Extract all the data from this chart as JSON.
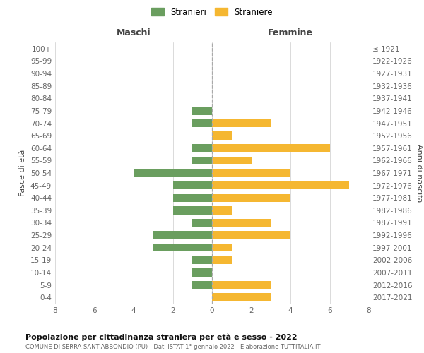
{
  "age_groups": [
    "100+",
    "95-99",
    "90-94",
    "85-89",
    "80-84",
    "75-79",
    "70-74",
    "65-69",
    "60-64",
    "55-59",
    "50-54",
    "45-49",
    "40-44",
    "35-39",
    "30-34",
    "25-29",
    "20-24",
    "15-19",
    "10-14",
    "5-9",
    "0-4"
  ],
  "birth_years": [
    "≤ 1921",
    "1922-1926",
    "1927-1931",
    "1932-1936",
    "1937-1941",
    "1942-1946",
    "1947-1951",
    "1952-1956",
    "1957-1961",
    "1962-1966",
    "1967-1971",
    "1972-1976",
    "1977-1981",
    "1982-1986",
    "1987-1991",
    "1992-1996",
    "1997-2001",
    "2002-2006",
    "2007-2011",
    "2012-2016",
    "2017-2021"
  ],
  "males": [
    0,
    0,
    0,
    0,
    0,
    1,
    1,
    0,
    1,
    1,
    4,
    2,
    2,
    2,
    1,
    3,
    3,
    1,
    1,
    1,
    0
  ],
  "females": [
    0,
    0,
    0,
    0,
    0,
    0,
    3,
    1,
    6,
    2,
    4,
    7,
    4,
    1,
    3,
    4,
    1,
    1,
    0,
    3,
    3
  ],
  "male_color": "#6a9e5f",
  "female_color": "#f5b731",
  "title": "Popolazione per cittadinanza straniera per età e sesso - 2022",
  "subtitle": "COMUNE DI SERRA SANT'ABBONDIO (PU) - Dati ISTAT 1° gennaio 2022 - Elaborazione TUTTITALIA.IT",
  "legend_male": "Stranieri",
  "legend_female": "Straniere",
  "header_left": "Maschi",
  "header_right": "Femmine",
  "ylabel_left": "Fasce di età",
  "ylabel_right": "Anni di nascita",
  "xlim": 8,
  "bg_color": "#ffffff",
  "grid_color": "#cccccc",
  "axis_label_color": "#444444",
  "tick_label_color": "#666666"
}
